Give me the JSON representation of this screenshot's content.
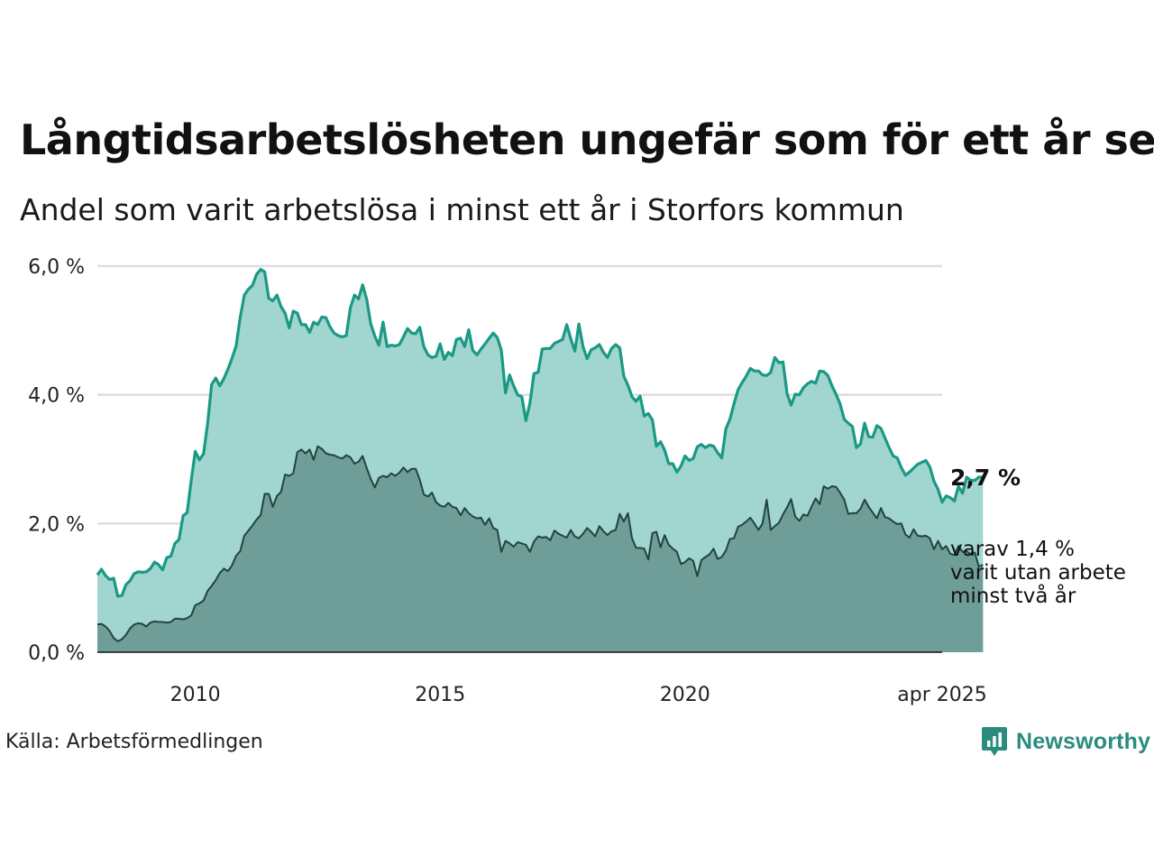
{
  "title": "Långtidsarbetslösheten ungefär som för ett år sen",
  "subtitle": "Andel som varit arbetslösa i minst ett år i Storfors kommun",
  "source": "Källa: Arbetsförmedlingen",
  "logo": {
    "text": "Newsworthy",
    "icon": "newsworthy-logo-icon",
    "color": "#2a8c7d"
  },
  "colors": {
    "total_line": "#1a9985",
    "total_fill": "#a1d5cf",
    "long_line": "#23433f",
    "long_fill": "#6f9e98",
    "grid": "#dddddd"
  },
  "chart_data": {
    "type": "area",
    "x_start": "2008-01",
    "x_end": "2025-04",
    "x_step": "month",
    "xlim": [
      "2008-01",
      "2025-04"
    ],
    "ylim": [
      0,
      6.0
    ],
    "y_ticks": [
      "0,0 %",
      "2,0 %",
      "4,0 %",
      "6,0 %"
    ],
    "y_tick_values": [
      0,
      2,
      4,
      6
    ],
    "x_ticks": [
      "2010",
      "2015",
      "2020",
      "apr 2025"
    ],
    "x_tick_dates": [
      "2010-01",
      "2015-01",
      "2020-01",
      "2025-04"
    ],
    "grid": true,
    "end_label": "2,7 %",
    "end_note": [
      "varav 1,4 %",
      "varit utan arbete",
      "minst två år"
    ],
    "series": [
      {
        "key": "total",
        "values": [
          1.2,
          1.29,
          1.19,
          1.13,
          1.15,
          0.87,
          0.88,
          1.05,
          1.11,
          1.22,
          1.25,
          1.24,
          1.25,
          1.3,
          1.4,
          1.36,
          1.28,
          1.47,
          1.49,
          1.69,
          1.75,
          2.12,
          2.17,
          2.67,
          3.12,
          2.99,
          3.08,
          3.54,
          4.16,
          4.26,
          4.14,
          4.25,
          4.4,
          4.57,
          4.76,
          5.2,
          5.55,
          5.64,
          5.7,
          5.87,
          5.95,
          5.91,
          5.5,
          5.46,
          5.55,
          5.37,
          5.27,
          5.04,
          5.3,
          5.27,
          5.09,
          5.09,
          4.97,
          5.13,
          5.09,
          5.21,
          5.2,
          5.06,
          4.96,
          4.92,
          4.9,
          4.92,
          5.35,
          5.55,
          5.49,
          5.71,
          5.48,
          5.1,
          4.91,
          4.77,
          5.13,
          4.75,
          4.77,
          4.76,
          4.78,
          4.9,
          5.03,
          4.96,
          4.95,
          5.05,
          4.75,
          4.62,
          4.58,
          4.6,
          4.79,
          4.55,
          4.66,
          4.61,
          4.86,
          4.88,
          4.75,
          5.01,
          4.69,
          4.62,
          4.71,
          4.79,
          4.88,
          4.96,
          4.89,
          4.69,
          4.03,
          4.31,
          4.14,
          4.0,
          3.97,
          3.6,
          3.87,
          4.33,
          4.35,
          4.71,
          4.72,
          4.72,
          4.8,
          4.83,
          4.86,
          5.09,
          4.87,
          4.68,
          5.1,
          4.75,
          4.56,
          4.7,
          4.73,
          4.78,
          4.66,
          4.58,
          4.72,
          4.78,
          4.73,
          4.29,
          4.15,
          3.97,
          3.9,
          3.98,
          3.67,
          3.71,
          3.61,
          3.2,
          3.27,
          3.14,
          2.93,
          2.93,
          2.8,
          2.89,
          3.05,
          2.98,
          3.01,
          3.19,
          3.23,
          3.18,
          3.22,
          3.2,
          3.1,
          3.02,
          3.47,
          3.62,
          3.86,
          4.08,
          4.19,
          4.29,
          4.41,
          4.37,
          4.37,
          4.31,
          4.3,
          4.35,
          4.58,
          4.5,
          4.51,
          4.02,
          3.84,
          4.01,
          4.0,
          4.11,
          4.17,
          4.21,
          4.18,
          4.37,
          4.36,
          4.3,
          4.14,
          4.01,
          3.86,
          3.62,
          3.56,
          3.51,
          3.18,
          3.24,
          3.56,
          3.35,
          3.34,
          3.52,
          3.48,
          3.33,
          3.18,
          3.05,
          3.02,
          2.87,
          2.75,
          2.8,
          2.86,
          2.92,
          2.95,
          2.98,
          2.88,
          2.66,
          2.53,
          2.33,
          2.43,
          2.4,
          2.35,
          2.58,
          2.47,
          2.72,
          2.67,
          2.67,
          2.72,
          2.72
        ]
      },
      {
        "key": "long",
        "values": [
          0.43,
          0.44,
          0.4,
          0.33,
          0.22,
          0.17,
          0.2,
          0.27,
          0.37,
          0.43,
          0.45,
          0.44,
          0.4,
          0.46,
          0.48,
          0.47,
          0.47,
          0.46,
          0.47,
          0.52,
          0.52,
          0.51,
          0.53,
          0.57,
          0.73,
          0.76,
          0.8,
          0.95,
          1.03,
          1.12,
          1.23,
          1.3,
          1.26,
          1.35,
          1.5,
          1.57,
          1.81,
          1.89,
          1.97,
          2.06,
          2.13,
          2.46,
          2.46,
          2.26,
          2.43,
          2.49,
          2.76,
          2.74,
          2.78,
          3.11,
          3.15,
          3.09,
          3.15,
          2.99,
          3.2,
          3.16,
          3.09,
          3.07,
          3.06,
          3.03,
          3.01,
          3.06,
          3.03,
          2.93,
          2.96,
          3.05,
          2.86,
          2.69,
          2.56,
          2.71,
          2.74,
          2.72,
          2.78,
          2.74,
          2.79,
          2.87,
          2.8,
          2.85,
          2.85,
          2.68,
          2.45,
          2.42,
          2.48,
          2.33,
          2.28,
          2.26,
          2.32,
          2.26,
          2.24,
          2.13,
          2.24,
          2.16,
          2.11,
          2.08,
          2.09,
          1.98,
          2.08,
          1.93,
          1.9,
          1.56,
          1.73,
          1.69,
          1.64,
          1.71,
          1.69,
          1.67,
          1.56,
          1.72,
          1.8,
          1.78,
          1.79,
          1.74,
          1.89,
          1.84,
          1.81,
          1.78,
          1.9,
          1.8,
          1.77,
          1.84,
          1.93,
          1.87,
          1.8,
          1.96,
          1.88,
          1.82,
          1.88,
          1.9,
          2.15,
          2.03,
          2.16,
          1.77,
          1.62,
          1.62,
          1.61,
          1.44,
          1.85,
          1.87,
          1.63,
          1.82,
          1.67,
          1.61,
          1.56,
          1.37,
          1.4,
          1.46,
          1.42,
          1.18,
          1.43,
          1.48,
          1.52,
          1.61,
          1.45,
          1.48,
          1.58,
          1.76,
          1.77,
          1.95,
          1.98,
          2.03,
          2.09,
          2.0,
          1.9,
          2.0,
          2.37,
          1.9,
          1.96,
          2.01,
          2.14,
          2.25,
          2.38,
          2.11,
          2.04,
          2.14,
          2.12,
          2.26,
          2.39,
          2.3,
          2.58,
          2.54,
          2.58,
          2.57,
          2.48,
          2.37,
          2.15,
          2.16,
          2.16,
          2.23,
          2.37,
          2.26,
          2.17,
          2.08,
          2.24,
          2.1,
          2.08,
          2.03,
          1.99,
          2.0,
          1.83,
          1.78,
          1.91,
          1.81,
          1.8,
          1.81,
          1.77,
          1.6,
          1.73,
          1.6,
          1.65,
          1.53,
          1.51,
          1.65,
          1.56,
          1.57,
          1.52,
          1.55,
          1.33,
          1.36
        ]
      }
    ]
  }
}
